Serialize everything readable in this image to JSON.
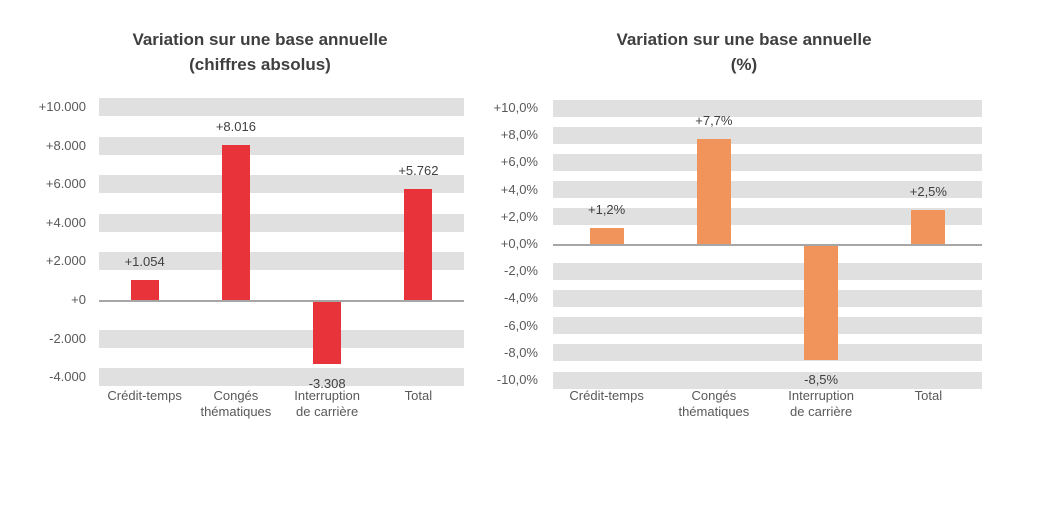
{
  "page": {
    "background": "#FFFFFF"
  },
  "chart_data": [
    {
      "type": "bar",
      "title": "Variation sur une base annuelle",
      "subtitle": "(chiffres absolus)",
      "categories": [
        "Crédit-temps",
        "Congés thématiques",
        "Interruption de carrière",
        "Total"
      ],
      "category_lines": [
        [
          "Crédit-temps"
        ],
        [
          "Congés",
          "thématiques"
        ],
        [
          "Interruption",
          "de carrière"
        ],
        [
          "Total"
        ]
      ],
      "values": [
        1054,
        8016,
        -3308,
        5762
      ],
      "value_labels": [
        "+1.054",
        "+8.016",
        "-3.308",
        "+5.762"
      ],
      "ticks": [
        {
          "value": 10000,
          "label": "+10.000"
        },
        {
          "value": 8000,
          "label": "+8.000"
        },
        {
          "value": 6000,
          "label": "+6.000"
        },
        {
          "value": 4000,
          "label": "+4.000"
        },
        {
          "value": 2000,
          "label": "+2.000"
        },
        {
          "value": 0,
          "label": "+0"
        },
        {
          "value": -2000,
          "label": "-2.000"
        },
        {
          "value": -4000,
          "label": "-4.000"
        }
      ],
      "ylim": [
        -4000,
        10000
      ],
      "grid": "horizontal-gray-bands",
      "legend": "none",
      "bar_color": "#E8333A",
      "band_color": "#E0E0E0",
      "axis_line_color": "#A6A6A6",
      "tick_text_color": "#595959",
      "label_text_color": "#3F3F3F"
    },
    {
      "type": "bar",
      "title": "Variation sur une base annuelle",
      "subtitle": "(%)",
      "categories": [
        "Crédit-temps",
        "Congés thématiques",
        "Interruption de carrière",
        "Total"
      ],
      "category_lines": [
        [
          "Crédit-temps"
        ],
        [
          "Congés",
          "thématiques"
        ],
        [
          "Interruption",
          "de carrière"
        ],
        [
          "Total"
        ]
      ],
      "values": [
        1.2,
        7.7,
        -8.5,
        2.5
      ],
      "value_labels": [
        "+1,2%",
        "+7,7%",
        "-8,5%",
        "+2,5%"
      ],
      "ticks": [
        {
          "value": 10,
          "label": "+10,0%"
        },
        {
          "value": 8,
          "label": "+8,0%"
        },
        {
          "value": 6,
          "label": "+6,0%"
        },
        {
          "value": 4,
          "label": "+4,0%"
        },
        {
          "value": 2,
          "label": "+2,0%"
        },
        {
          "value": 0,
          "label": "+0,0%"
        },
        {
          "value": -2,
          "label": "-2,0%"
        },
        {
          "value": -4,
          "label": "-4,0%"
        },
        {
          "value": -6,
          "label": "-6,0%"
        },
        {
          "value": -8,
          "label": "-8,0%"
        },
        {
          "value": -10,
          "label": "-10,0%"
        }
      ],
      "ylim": [
        -10,
        10
      ],
      "grid": "horizontal-gray-bands",
      "legend": "none",
      "bar_color": "#F0945B",
      "band_color": "#E0E0E0",
      "axis_line_color": "#A6A6A6",
      "tick_text_color": "#595959",
      "label_text_color": "#3F3F3F"
    }
  ]
}
